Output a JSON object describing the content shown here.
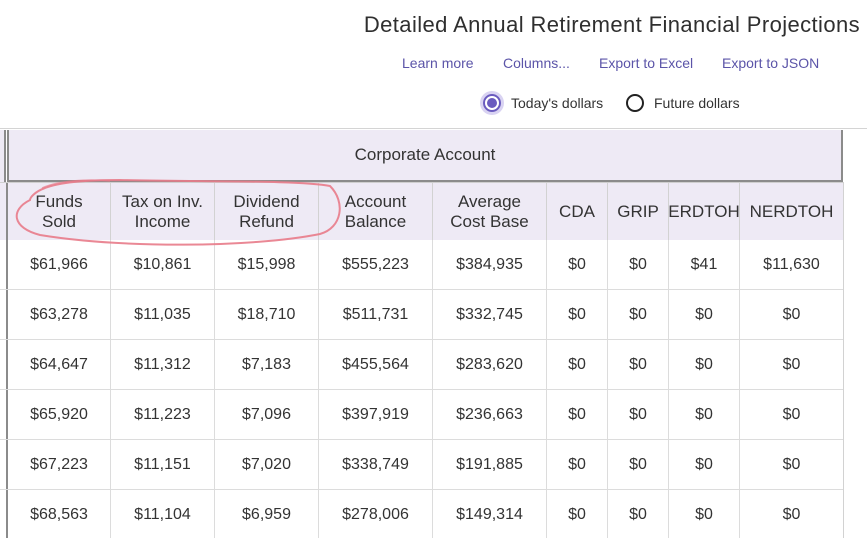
{
  "header": {
    "title": "Detailed Annual Retirement Financial Projections",
    "links": [
      "Learn more",
      "Columns...",
      "Export to Excel",
      "Export to JSON"
    ],
    "radio_options": [
      {
        "label": "Today's dollars",
        "selected": true
      },
      {
        "label": "Future dollars",
        "selected": false
      }
    ]
  },
  "table": {
    "group_header": "Corporate Account",
    "columns": [
      {
        "line1": "Funds",
        "line2": "Sold"
      },
      {
        "line1": "Tax on Inv.",
        "line2": "Income"
      },
      {
        "line1": "Dividend",
        "line2": "Refund"
      },
      {
        "line1": "Account",
        "line2": "Balance"
      },
      {
        "line1": "Average",
        "line2": "Cost Base"
      },
      {
        "line1": "CDA",
        "line2": ""
      },
      {
        "line1": "GRIP",
        "line2": ""
      },
      {
        "line1": "ERDTOH",
        "line2": ""
      },
      {
        "line1": "NERDTOH",
        "line2": ""
      }
    ],
    "rows": [
      [
        "$61,966",
        "$10,861",
        "$15,998",
        "$555,223",
        "$384,935",
        "$0",
        "$0",
        "$41",
        "$11,630"
      ],
      [
        "$63,278",
        "$11,035",
        "$18,710",
        "$511,731",
        "$332,745",
        "$0",
        "$0",
        "$0",
        "$0"
      ],
      [
        "$64,647",
        "$11,312",
        "$7,183",
        "$455,564",
        "$283,620",
        "$0",
        "$0",
        "$0",
        "$0"
      ],
      [
        "$65,920",
        "$11,223",
        "$7,096",
        "$397,919",
        "$236,663",
        "$0",
        "$0",
        "$0",
        "$0"
      ],
      [
        "$67,223",
        "$11,151",
        "$7,020",
        "$338,749",
        "$191,885",
        "$0",
        "$0",
        "$0",
        "$0"
      ],
      [
        "$68,563",
        "$11,104",
        "$6,959",
        "$278,006",
        "$149,314",
        "$0",
        "$0",
        "$0",
        "$0"
      ]
    ]
  },
  "colors": {
    "accent": "#6a5bbf",
    "link": "#5b54a8",
    "header_bg": "#eeeaf5",
    "annotation": "#e87b8a"
  }
}
